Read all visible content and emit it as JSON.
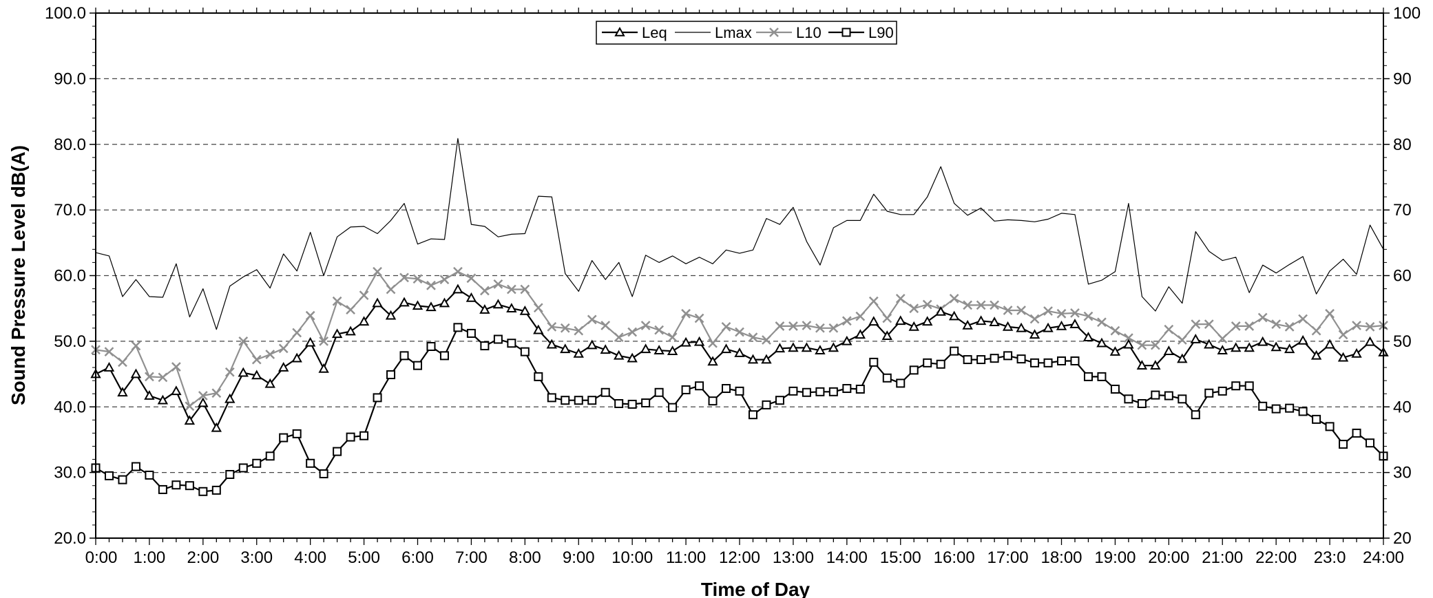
{
  "chart_data": {
    "type": "line",
    "title": "",
    "xlabel": "Time of Day",
    "ylabel": "Sound Pressure Level dB(A)",
    "ylim": [
      20,
      100
    ],
    "y_right_lim": [
      20,
      100
    ],
    "xlim": [
      0,
      24
    ],
    "grid": "horizontal dashed",
    "legend": "top-center",
    "x_tick_labels": [
      "0:00",
      "1:00",
      "2:00",
      "3:00",
      "4:00",
      "5:00",
      "6:00",
      "7:00",
      "8:00",
      "9:00",
      "10:00",
      "11:00",
      "12:00",
      "13:00",
      "14:00",
      "15:00",
      "16:00",
      "17:00",
      "18:00",
      "19:00",
      "20:00",
      "21:00",
      "22:00",
      "23:0",
      "24:00"
    ],
    "y_left_tick_labels": [
      "20.0",
      "30.0",
      "40.0",
      "50.0",
      "60.0",
      "70.0",
      "80.0",
      "90.0",
      "100.0"
    ],
    "y_right_tick_labels": [
      "20",
      "30",
      "40",
      "50",
      "60",
      "70",
      "80",
      "90",
      "100"
    ],
    "x": [
      0,
      0.25,
      0.5,
      0.75,
      1,
      1.25,
      1.5,
      1.75,
      2,
      2.25,
      2.5,
      2.75,
      3,
      3.25,
      3.5,
      3.75,
      4,
      4.25,
      4.5,
      4.75,
      5,
      5.25,
      5.5,
      5.75,
      6,
      6.25,
      6.5,
      6.75,
      7,
      7.25,
      7.5,
      7.75,
      8,
      8.25,
      8.5,
      8.75,
      9,
      9.25,
      9.5,
      9.75,
      10,
      10.25,
      10.5,
      10.75,
      11,
      11.25,
      11.5,
      11.75,
      12,
      12.25,
      12.5,
      12.75,
      13,
      13.25,
      13.5,
      13.75,
      14,
      14.25,
      14.5,
      14.75,
      15,
      15.25,
      15.5,
      15.75,
      16,
      16.25,
      16.5,
      16.75,
      17,
      17.25,
      17.5,
      17.75,
      18,
      18.25,
      18.5,
      18.75,
      19,
      19.25,
      19.5,
      19.75,
      20,
      20.25,
      20.5,
      20.75,
      21,
      21.25,
      21.5,
      21.75,
      22,
      22.25,
      22.5,
      22.75,
      23,
      23.25,
      23.5,
      23.75,
      24
    ],
    "series": [
      {
        "name": "Leq",
        "color": "#000000",
        "marker": "triangle",
        "values": [
          45.0,
          46.0,
          42.2,
          45.0,
          41.7,
          41.0,
          42.4,
          37.9,
          40.6,
          36.8,
          41.2,
          45.2,
          44.8,
          43.5,
          46.0,
          47.4,
          49.8,
          45.8,
          51.1,
          51.5,
          53.0,
          55.8,
          53.9,
          55.9,
          55.4,
          55.2,
          55.8,
          57.9,
          56.6,
          54.8,
          55.6,
          55.0,
          54.6,
          51.7,
          49.5,
          48.8,
          48.1,
          49.4,
          48.7,
          47.8,
          47.4,
          48.8,
          48.6,
          48.5,
          49.8,
          49.9,
          46.9,
          48.8,
          48.2,
          47.2,
          47.2,
          48.9,
          49.0,
          49.0,
          48.6,
          49.0,
          50.0,
          51.0,
          53.0,
          50.8,
          53.1,
          52.2,
          53.0,
          54.5,
          53.8,
          52.4,
          53.1,
          52.9,
          52.2,
          52.0,
          51.0,
          52.0,
          52.3,
          52.6,
          50.6,
          49.7,
          48.4,
          49.5,
          46.3,
          46.3,
          48.5,
          47.3,
          50.3,
          49.5,
          48.6,
          49.0,
          49.0,
          49.9,
          49.1,
          48.8,
          50.1,
          47.8,
          49.5,
          47.5,
          48.1,
          49.9,
          48.3
        ]
      },
      {
        "name": "Lmax",
        "color": "#000000",
        "marker": "none",
        "values": [
          63.5,
          63.0,
          56.8,
          59.4,
          56.8,
          56.7,
          61.8,
          53.7,
          58.0,
          51.8,
          58.4,
          59.8,
          60.9,
          58.1,
          63.3,
          60.7,
          66.6,
          60.0,
          65.9,
          67.4,
          67.5,
          66.4,
          68.4,
          71.0,
          64.8,
          65.6,
          65.5,
          80.9,
          67.8,
          67.5,
          65.9,
          66.3,
          66.4,
          72.1,
          72.0,
          60.3,
          57.6,
          62.3,
          59.4,
          62.0,
          56.8,
          63.1,
          62.0,
          63.0,
          61.8,
          62.8,
          61.8,
          63.9,
          63.4,
          63.9,
          68.7,
          67.8,
          70.4,
          65.2,
          61.6,
          67.3,
          68.4,
          68.4,
          72.4,
          69.8,
          69.3,
          69.3,
          72.0,
          76.6,
          71.0,
          69.2,
          70.3,
          68.3,
          68.5,
          68.4,
          68.2,
          68.6,
          69.5,
          69.3,
          58.7,
          59.3,
          60.6,
          71.0,
          56.8,
          54.6,
          58.3,
          55.8,
          66.7,
          63.7,
          62.3,
          62.8,
          57.4,
          61.6,
          60.4,
          61.7,
          62.9,
          57.2,
          60.7,
          62.5,
          60.2,
          67.7,
          64.0
        ]
      },
      {
        "name": "L10",
        "color": "#909090",
        "marker": "x",
        "values": [
          48.7,
          48.4,
          46.8,
          49.3,
          44.6,
          44.5,
          46.1,
          40.1,
          41.7,
          42.1,
          45.3,
          50.0,
          47.2,
          48.0,
          48.9,
          51.3,
          53.9,
          50.0,
          56.1,
          54.8,
          57.0,
          60.6,
          57.9,
          59.7,
          59.5,
          58.5,
          59.4,
          60.6,
          59.6,
          57.7,
          58.7,
          57.9,
          57.9,
          55.1,
          52.2,
          52.0,
          51.6,
          53.3,
          52.4,
          50.6,
          51.4,
          52.4,
          51.7,
          50.6,
          54.2,
          53.5,
          49.7,
          52.2,
          51.4,
          50.6,
          50.2,
          52.3,
          52.3,
          52.4,
          52.0,
          52.0,
          53.1,
          53.8,
          56.1,
          53.5,
          56.5,
          55.0,
          55.6,
          54.9,
          56.5,
          55.5,
          55.5,
          55.5,
          54.7,
          54.7,
          53.4,
          54.6,
          54.2,
          54.3,
          53.8,
          52.9,
          51.6,
          50.5,
          49.4,
          49.4,
          51.8,
          50.2,
          52.6,
          52.6,
          50.4,
          52.3,
          52.3,
          53.6,
          52.6,
          52.2,
          53.4,
          51.6,
          54.2,
          51.0,
          52.4,
          52.2,
          52.4
        ]
      },
      {
        "name": "L90",
        "color": "#000000",
        "marker": "square",
        "values": [
          30.7,
          29.5,
          28.9,
          30.9,
          29.6,
          27.4,
          28.1,
          28.0,
          27.1,
          27.3,
          29.7,
          30.7,
          31.4,
          32.5,
          35.3,
          35.9,
          31.4,
          29.8,
          33.2,
          35.4,
          35.6,
          41.4,
          44.9,
          47.8,
          46.3,
          49.2,
          47.8,
          52.1,
          51.2,
          49.3,
          50.3,
          49.7,
          48.4,
          44.6,
          41.4,
          41.0,
          41.0,
          41.0,
          42.2,
          40.5,
          40.4,
          40.6,
          42.2,
          39.9,
          42.6,
          43.2,
          40.9,
          42.8,
          42.4,
          38.8,
          40.3,
          41.0,
          42.4,
          42.2,
          42.3,
          42.3,
          42.8,
          42.7,
          46.8,
          44.4,
          43.6,
          45.6,
          46.7,
          46.5,
          48.5,
          47.2,
          47.2,
          47.4,
          47.8,
          47.3,
          46.7,
          46.7,
          47.0,
          47.0,
          44.6,
          44.6,
          42.7,
          41.2,
          40.5,
          41.8,
          41.7,
          41.2,
          38.8,
          42.1,
          42.4,
          43.2,
          43.2,
          40.1,
          39.7,
          39.8,
          39.3,
          38.1,
          37.0,
          34.3,
          36.0,
          34.5,
          32.5
        ]
      }
    ]
  }
}
